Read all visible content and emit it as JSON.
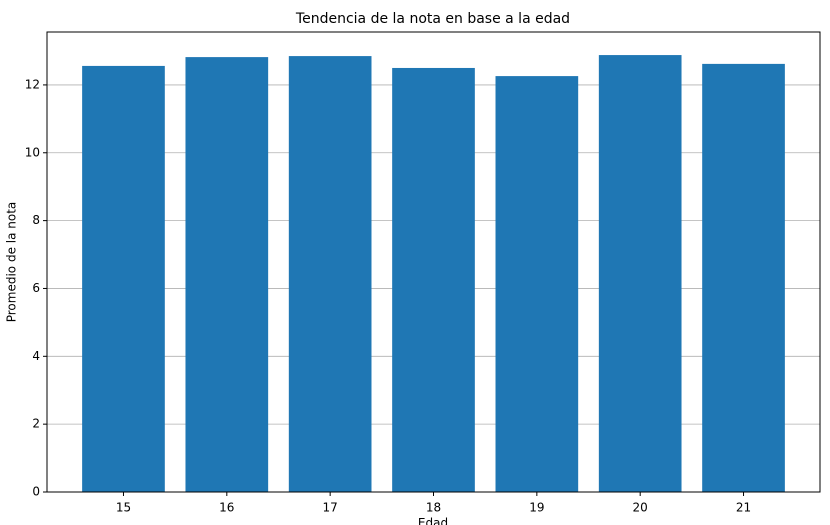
{
  "chart_data": {
    "type": "bar",
    "title": "Tendencia de la nota en base a la edad",
    "x_label": "Edad",
    "y_label": "Promedio de la nota",
    "categories": [
      "15",
      "16",
      "17",
      "18",
      "19",
      "20",
      "21"
    ],
    "values": [
      12.56,
      12.82,
      12.85,
      12.5,
      12.26,
      12.88,
      12.62
    ],
    "color": "#1f77b4",
    "ylim": [
      0,
      13.56
    ],
    "yticks": [
      0,
      2,
      4,
      6,
      8,
      10,
      12
    ],
    "grid": true
  }
}
